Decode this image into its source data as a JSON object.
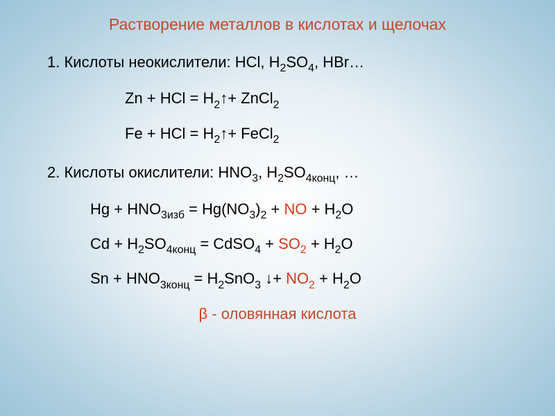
{
  "colors": {
    "title": "#c24a2c",
    "body": "#2a2a2a",
    "no": "#d83a1a",
    "so2": "#d83a1a",
    "no2": "#d83a1a",
    "beta": "#d83a1a"
  },
  "title": "Растворение металлов в кислотах и щелочах",
  "section1": {
    "heading_pre": "1. Кислоты неокислители: HCl, H",
    "heading_sub1": "2",
    "heading_mid": "SO",
    "heading_sub2": "4",
    "heading_post": ", HBr…",
    "eq1_pre": "Zn + HCl = H",
    "eq1_sub": "2",
    "eq1_arrow": " ↑",
    "eq1_post": "+ ZnCl",
    "eq1_sub2": "2",
    "eq2_pre": "Fe + HCl =  H",
    "eq2_sub": "2",
    "eq2_arrow": "↑",
    "eq2_post": "+ FeCl",
    "eq2_sub2": "2"
  },
  "section2": {
    "heading_pre": "2. Кислоты окислители: HNO",
    "heading_sub1": "3",
    "heading_mid": ", H",
    "heading_sub2": "2",
    "heading_mid2": "SO",
    "heading_sub3": "4конц",
    "heading_post": ", …",
    "eq1_a": "Hg + HNO",
    "eq1_s1": "3изб",
    "eq1_b": " = Hg(NO",
    "eq1_s2": "3",
    "eq1_c": ")",
    "eq1_s3": "2",
    "eq1_d": " + ",
    "eq1_no": "NO",
    "eq1_e": " + H",
    "eq1_s4": "2",
    "eq1_f": "O",
    "eq2_a": "Cd + H",
    "eq2_s1": "2",
    "eq2_b": "SO",
    "eq2_s2": "4конц",
    "eq2_c": " = CdSO",
    "eq2_s3": "4",
    "eq2_d": " + ",
    "eq2_so": "SO",
    "eq2_so_s": "2",
    "eq2_e": " + H",
    "eq2_s4": "2",
    "eq2_f": "O",
    "eq3_a": "Sn + HNO",
    "eq3_s1": "3конц",
    "eq3_b": " = H",
    "eq3_s2": "2",
    "eq3_c": "SnO",
    "eq3_s3": "3",
    "eq3_arrow": " ↓",
    "eq3_d": "+ ",
    "eq3_no": "NO",
    "eq3_no_s": "2",
    "eq3_e": " + H",
    "eq3_s4": "2",
    "eq3_f": "O"
  },
  "footer": {
    "beta": "β",
    "text": " - оловянная кислота"
  }
}
